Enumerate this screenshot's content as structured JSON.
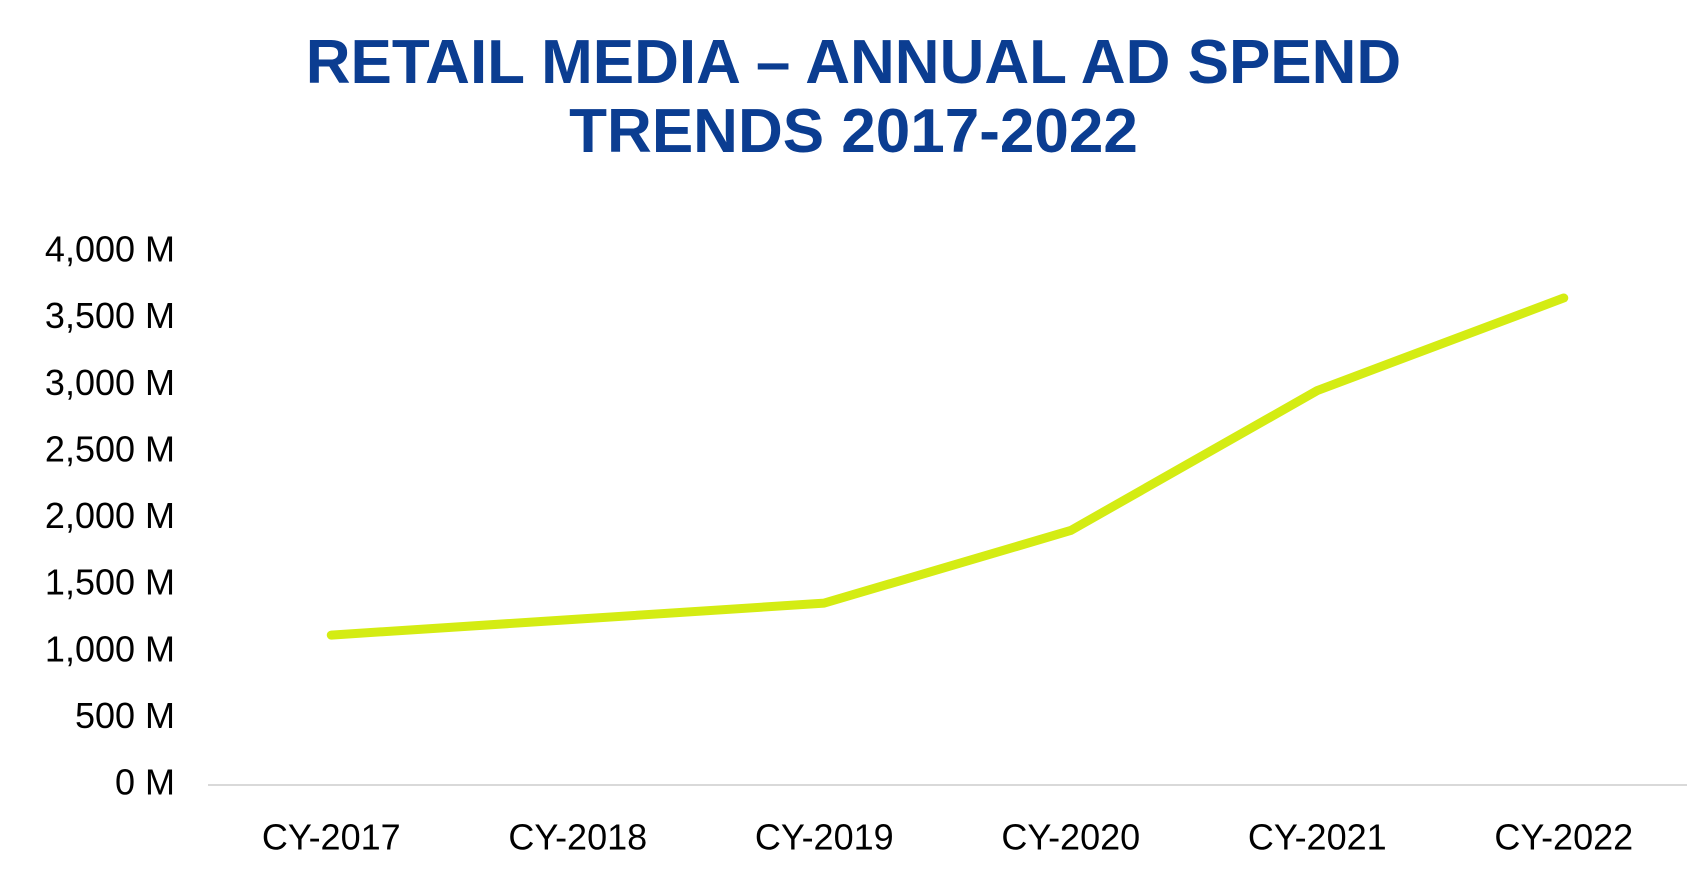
{
  "chart_data": {
    "type": "line",
    "title": "RETAIL MEDIA – ANNUAL AD SPEND\nTRENDS 2017-2022",
    "xlabel": "",
    "ylabel": "",
    "categories": [
      "CY-2017",
      "CY-2018",
      "CY-2019",
      "CY-2020",
      "CY-2021",
      "CY-2022"
    ],
    "series": [
      {
        "values": [
          1125,
          1245,
          1365,
          1910,
          2960,
          3655
        ]
      }
    ],
    "ylim": [
      0,
      4000
    ],
    "yticks": [
      0,
      500,
      1000,
      1500,
      2000,
      2500,
      3000,
      3500,
      4000
    ],
    "ytick_labels": [
      "0 M",
      "500 M",
      "1,000 M",
      "1,500 M",
      "2,000 M",
      "2,500 M",
      "3,000 M",
      "3,500 M",
      "4,000 M"
    ],
    "grid": false,
    "legend": "none",
    "colors": {
      "title": "#0b3d91",
      "line": "#d4ec13",
      "axis": "#d9d9d9",
      "text": "#000000"
    }
  }
}
